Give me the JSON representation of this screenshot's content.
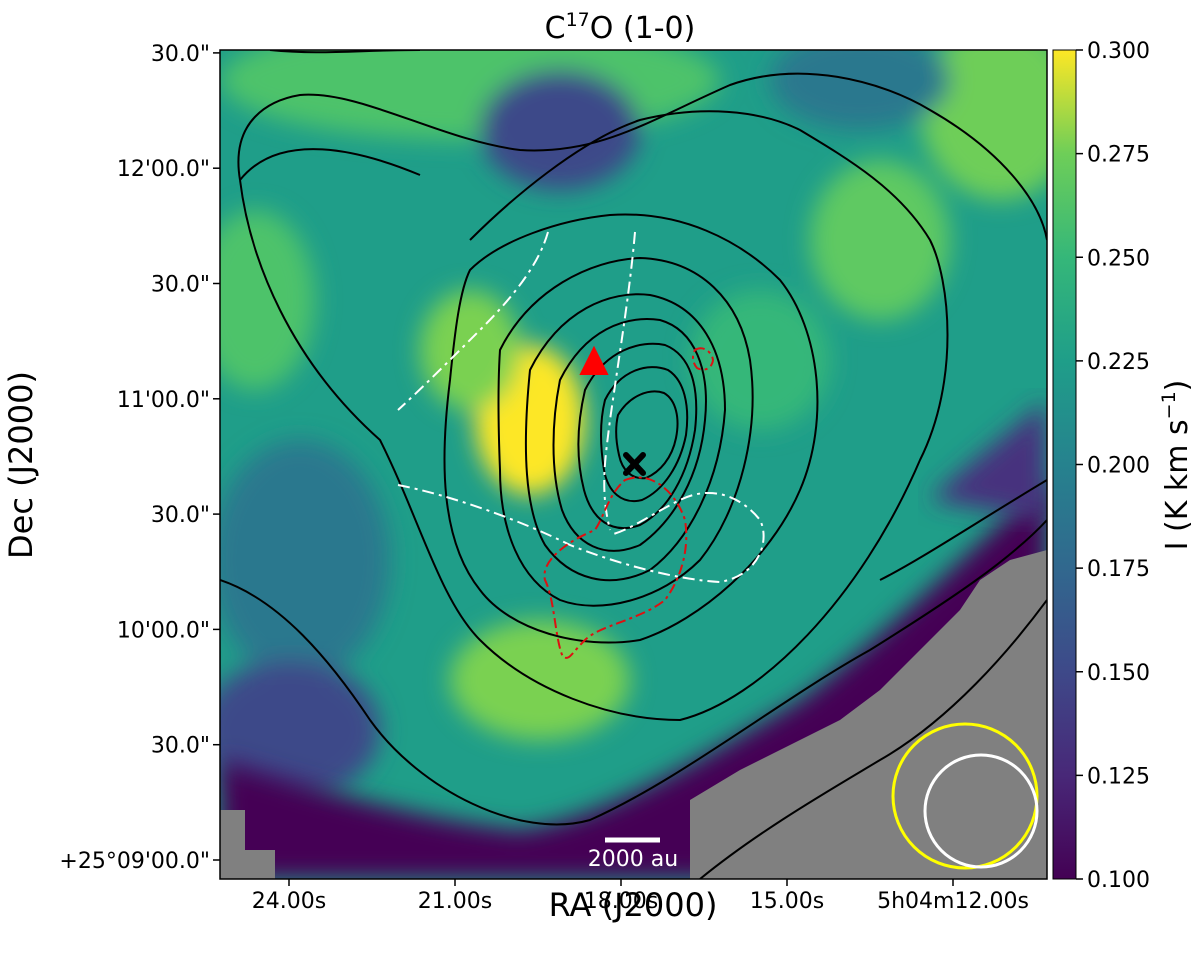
{
  "chart_data": {
    "type": "heatmap",
    "title_base": "C",
    "title_sup": "17",
    "title_rest": "O (1-0)",
    "xlabel": "RA (J2000)",
    "ylabel": "Dec (J2000)",
    "x_ticks": [
      "24.00s",
      "21.00s",
      "18.00s",
      "15.00s",
      "5h04m12.00s"
    ],
    "y_ticks": [
      "+25°09'00.0\"",
      "30.0\"",
      "10'00.0\"",
      "30.0\"",
      "11'00.0\"",
      "30.0\"",
      "12'00.0\"",
      "30.0\""
    ],
    "colorbar": {
      "label_base": "I (K km s",
      "label_sup": "−1",
      "label_end": ")",
      "range": [
        0.1,
        0.3
      ],
      "ticks": [
        "0.100",
        "0.125",
        "0.150",
        "0.175",
        "0.200",
        "0.225",
        "0.250",
        "0.275",
        "0.300"
      ],
      "colormap": "viridis"
    },
    "scalebar_label": "2000 au",
    "markers": [
      {
        "name": "dust-peak",
        "shape": "x",
        "color": "#000000"
      },
      {
        "name": "source",
        "shape": "triangle",
        "color": "#ff0000"
      }
    ],
    "beams": [
      {
        "name": "beam-large",
        "color": "#ffff00"
      },
      {
        "name": "beam-small",
        "color": "#ffffff"
      }
    ],
    "masked_color": "#808080",
    "contour_color": "#000000"
  }
}
